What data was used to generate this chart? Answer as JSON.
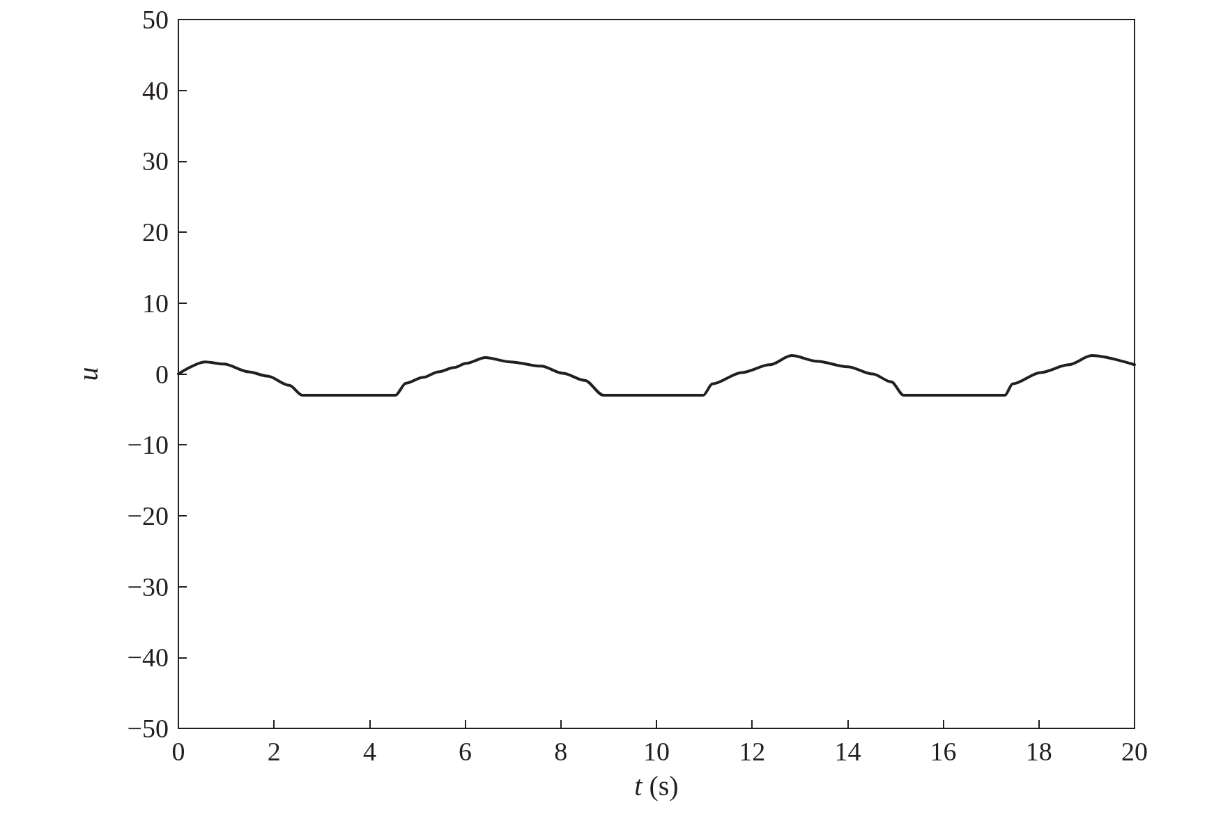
{
  "chart_data": {
    "type": "line",
    "xlabel": "t (s)",
    "ylabel": "u",
    "xlim": [
      0,
      20
    ],
    "xticks": [
      0,
      2,
      4,
      6,
      8,
      10,
      12,
      14,
      16,
      18,
      20
    ],
    "ylim": [
      -50,
      50
    ],
    "yticks": [
      -50,
      -40,
      -30,
      -20,
      -10,
      0,
      10,
      20,
      30,
      40,
      50
    ],
    "grid": false,
    "marker": "none",
    "line_style": "solid",
    "series": [
      {
        "color": "#231f20",
        "x": [
          0,
          0.56,
          0.95,
          1.47,
          1.86,
          2.32,
          2.59,
          4.54,
          4.76,
          5.11,
          5.44,
          5.77,
          6.02,
          6.42,
          6.94,
          7.59,
          8.04,
          8.5,
          8.89,
          10.98,
          11.17,
          11.79,
          12.37,
          12.83,
          13.35,
          14.0,
          14.52,
          14.91,
          15.17,
          17.29,
          17.45,
          18.04,
          18.62,
          19.11,
          20
        ],
        "values": [
          0,
          1.7,
          1.4,
          0.3,
          -0.3,
          -1.6,
          -3,
          -3,
          -1.3,
          -0.5,
          0.3,
          0.9,
          1.5,
          2.3,
          1.7,
          1.1,
          0.1,
          -0.9,
          -3,
          -3,
          -1.4,
          0.2,
          1.3,
          2.6,
          1.8,
          1,
          0,
          -1.1,
          -3,
          -3,
          -1.4,
          0.2,
          1.3,
          2.6,
          1.3
        ]
      }
    ]
  }
}
